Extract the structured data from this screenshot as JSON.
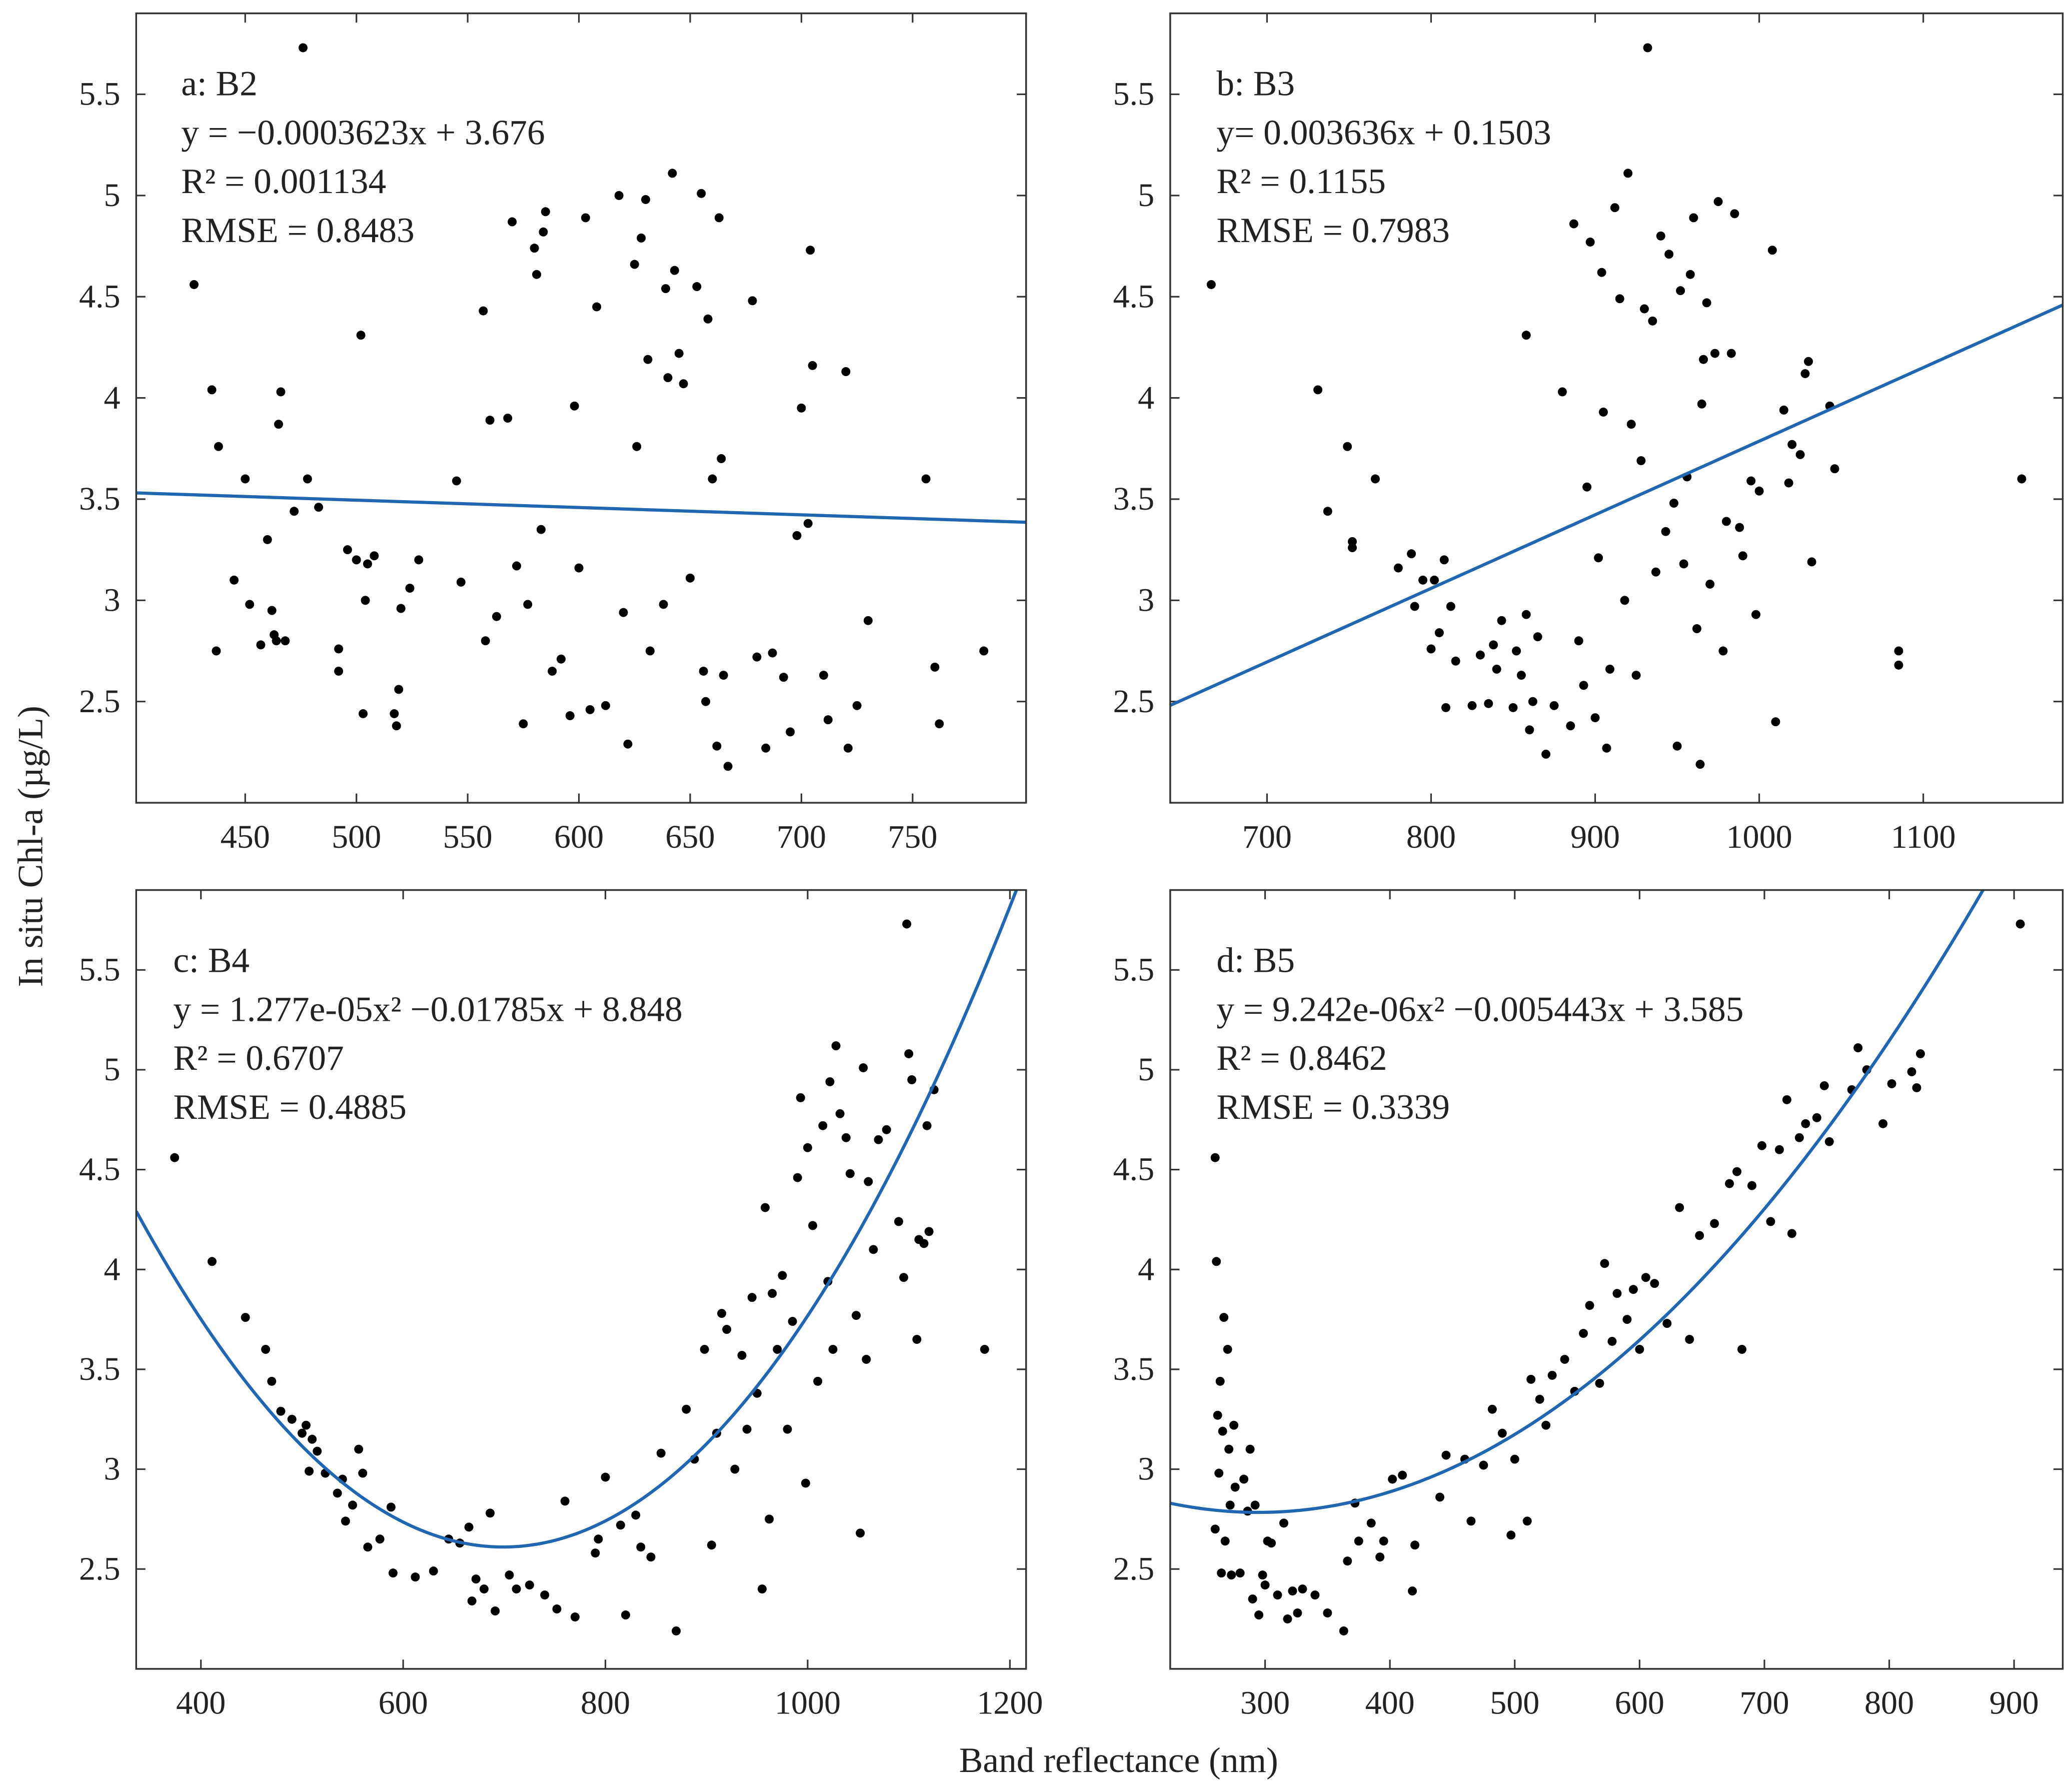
{
  "axis_labels": {
    "x": "Band reflectance (nm)",
    "y": "In situ Chl-a (µg/L)"
  },
  "chart_data": [
    {
      "type": "scatter",
      "annotations": [
        "a: B2",
        "y = −0.0003623x + 3.676",
        "R² = 0.001134",
        "RMSE = 0.8483"
      ],
      "fit": {
        "degree": 1,
        "coefficients": [
          -0.0003623,
          3.676
        ]
      },
      "color": "#000000",
      "fit_color": "#2166b0",
      "xlim": [
        401,
        801
      ],
      "ylim": [
        2.0,
        5.9
      ],
      "xticks": [
        450,
        500,
        550,
        600,
        650,
        700,
        750
      ],
      "yticks": [
        2.5,
        3,
        3.5,
        4,
        4.5,
        5,
        5.5
      ],
      "x": [
        427,
        435,
        437,
        438,
        445,
        450,
        452,
        457,
        460,
        462,
        463,
        464,
        465,
        466,
        468,
        472,
        476,
        478,
        483,
        492,
        492,
        496,
        500,
        502,
        503,
        504,
        505,
        508,
        517,
        518,
        519,
        520,
        524,
        528,
        545,
        547,
        557,
        558,
        560,
        563,
        568,
        570,
        572,
        575,
        577,
        580,
        581,
        583,
        584,
        585,
        588,
        592,
        596,
        598,
        600,
        603,
        605,
        608,
        612,
        618,
        620,
        622,
        625,
        626,
        628,
        630,
        631,
        632,
        638,
        639,
        640,
        642,
        643,
        645,
        647,
        650,
        653,
        655,
        656,
        657,
        658,
        660,
        662,
        663,
        664,
        665,
        667,
        678,
        680,
        684,
        687,
        692,
        695,
        698,
        700,
        703,
        704,
        705,
        710,
        712,
        720,
        721,
        725,
        730,
        756,
        760,
        762,
        782
      ],
      "values": [
        4.56,
        4.04,
        2.75,
        3.76,
        3.1,
        3.6,
        2.98,
        2.78,
        3.3,
        2.95,
        2.83,
        2.8,
        3.87,
        4.03,
        2.8,
        3.44,
        5.73,
        3.6,
        3.46,
        2.76,
        2.65,
        3.25,
        3.2,
        4.31,
        2.44,
        3.0,
        3.18,
        3.22,
        2.44,
        2.38,
        2.56,
        2.96,
        3.06,
        3.2,
        3.59,
        3.09,
        4.43,
        2.8,
        3.89,
        2.92,
        3.9,
        4.87,
        3.17,
        2.39,
        2.98,
        4.74,
        4.61,
        3.35,
        4.82,
        4.92,
        2.65,
        2.71,
        2.43,
        3.96,
        3.16,
        4.89,
        2.46,
        4.45,
        2.48,
        5.0,
        2.94,
        2.29,
        4.66,
        3.76,
        4.79,
        4.98,
        4.19,
        2.75,
        2.98,
        4.54,
        4.1,
        5.11,
        4.63,
        4.22,
        4.07,
        3.11,
        4.55,
        5.01,
        2.65,
        2.5,
        4.39,
        3.6,
        2.28,
        4.89,
        3.7,
        2.63,
        2.18,
        4.48,
        2.72,
        2.27,
        2.74,
        2.62,
        2.35,
        3.32,
        3.95,
        3.38,
        4.73,
        4.16,
        2.63,
        2.41,
        4.13,
        2.27,
        2.48,
        2.9,
        3.6,
        2.67,
        2.39,
        2.75
      ]
    },
    {
      "type": "scatter",
      "annotations": [
        "b: B3",
        "y= 0.003636x + 0.1503",
        "R² = 0.1155",
        "RMSE = 0.7983"
      ],
      "fit": {
        "degree": 1,
        "coefficients": [
          0.003636,
          0.1503
        ]
      },
      "color": "#000000",
      "fit_color": "#2166b0",
      "xlim": [
        641,
        1185
      ],
      "ylim": [
        2.0,
        5.9
      ],
      "xticks": [
        700,
        800,
        900,
        1000,
        1100
      ],
      "yticks": [
        2.5,
        3,
        3.5,
        4,
        4.5,
        5,
        5.5
      ],
      "x": [
        666,
        731,
        737,
        749,
        752,
        752,
        766,
        780,
        788,
        790,
        795,
        800,
        802,
        805,
        808,
        809,
        812,
        815,
        825,
        830,
        835,
        838,
        840,
        843,
        850,
        852,
        855,
        858,
        858,
        860,
        862,
        865,
        870,
        875,
        880,
        885,
        887,
        890,
        893,
        895,
        897,
        900,
        902,
        904,
        905,
        907,
        909,
        912,
        915,
        918,
        920,
        922,
        925,
        928,
        930,
        932,
        935,
        937,
        940,
        943,
        945,
        948,
        950,
        952,
        954,
        956,
        958,
        960,
        962,
        964,
        965,
        966,
        968,
        970,
        973,
        975,
        978,
        980,
        983,
        985,
        988,
        990,
        995,
        998,
        1000,
        1008,
        1010,
        1015,
        1018,
        1020,
        1025,
        1028,
        1030,
        1032,
        1043,
        1046,
        1085,
        1085,
        1160
      ],
      "values": [
        4.56,
        4.04,
        3.44,
        3.76,
        3.26,
        3.29,
        3.6,
        3.16,
        3.23,
        2.97,
        3.1,
        2.76,
        3.1,
        2.84,
        3.2,
        2.47,
        2.97,
        2.7,
        2.48,
        2.73,
        2.49,
        2.78,
        2.66,
        2.9,
        2.47,
        2.75,
        2.63,
        2.93,
        4.31,
        2.36,
        2.5,
        2.82,
        2.24,
        2.48,
        4.03,
        2.38,
        4.86,
        2.8,
        2.58,
        3.56,
        4.77,
        2.42,
        3.21,
        4.62,
        3.93,
        2.27,
        2.66,
        4.94,
        4.49,
        3.0,
        5.11,
        3.87,
        2.63,
        3.69,
        4.44,
        5.73,
        4.38,
        3.14,
        4.8,
        3.34,
        4.71,
        3.48,
        2.28,
        4.53,
        3.18,
        3.61,
        4.61,
        4.89,
        2.86,
        2.19,
        3.97,
        4.19,
        4.47,
        3.08,
        4.22,
        4.97,
        2.75,
        3.39,
        4.22,
        4.91,
        3.36,
        3.22,
        3.59,
        2.93,
        3.54,
        4.73,
        2.4,
        3.94,
        3.58,
        3.77,
        3.72,
        4.12,
        4.18,
        3.19,
        3.96,
        3.65,
        2.75,
        2.68,
        3.6
      ]
    },
    {
      "type": "scatter",
      "annotations": [
        "c: B4",
        "y = 1.277e-05x² −0.01785x + 8.848",
        "R² = 0.6707",
        "RMSE = 0.4885"
      ],
      "fit": {
        "degree": 2,
        "coefficients": [
          1.277e-05,
          -0.01785,
          8.848
        ]
      },
      "color": "#000000",
      "fit_color": "#2166b0",
      "xlim": [
        336,
        1216
      ],
      "ylim": [
        2.0,
        5.9
      ],
      "xticks": [
        400,
        600,
        800,
        1000,
        1200
      ],
      "yticks": [
        2.5,
        3,
        3.5,
        4,
        4.5,
        5,
        5.5
      ],
      "x": [
        374,
        411,
        444,
        464,
        470,
        479,
        490,
        500,
        504,
        507,
        510,
        515,
        523,
        535,
        540,
        543,
        550,
        556,
        560,
        565,
        577,
        588,
        590,
        612,
        630,
        645,
        656,
        665,
        668,
        672,
        680,
        686,
        691,
        705,
        712,
        725,
        740,
        752,
        760,
        770,
        790,
        793,
        800,
        815,
        820,
        830,
        835,
        845,
        855,
        870,
        880,
        888,
        898,
        905,
        910,
        915,
        920,
        928,
        935,
        940,
        945,
        950,
        955,
        958,
        962,
        965,
        970,
        975,
        980,
        985,
        990,
        993,
        998,
        1000,
        1005,
        1010,
        1015,
        1020,
        1022,
        1025,
        1028,
        1032,
        1038,
        1042,
        1048,
        1052,
        1055,
        1058,
        1060,
        1065,
        1070,
        1078,
        1090,
        1095,
        1098,
        1100,
        1103,
        1108,
        1110,
        1115,
        1118,
        1120,
        1125,
        1175
      ],
      "values": [
        4.56,
        4.04,
        3.76,
        3.6,
        3.44,
        3.29,
        3.25,
        3.18,
        3.22,
        2.99,
        3.15,
        3.09,
        2.98,
        2.88,
        2.95,
        2.74,
        2.82,
        3.1,
        2.98,
        2.61,
        2.65,
        2.81,
        2.48,
        2.46,
        2.49,
        2.65,
        2.63,
        2.71,
        2.34,
        2.45,
        2.4,
        2.78,
        2.29,
        2.47,
        2.4,
        2.42,
        2.37,
        2.3,
        2.84,
        2.26,
        2.58,
        2.65,
        2.96,
        2.72,
        2.27,
        2.77,
        2.61,
        2.56,
        3.08,
        2.19,
        3.3,
        3.05,
        3.6,
        2.62,
        3.18,
        3.78,
        3.7,
        3.0,
        3.57,
        3.2,
        3.86,
        3.38,
        2.4,
        4.31,
        2.75,
        3.88,
        3.6,
        3.97,
        3.2,
        3.74,
        4.46,
        4.86,
        2.93,
        4.61,
        4.22,
        3.44,
        4.72,
        3.94,
        4.94,
        3.6,
        5.12,
        4.78,
        4.66,
        4.48,
        3.77,
        2.68,
        5.01,
        3.55,
        4.44,
        4.1,
        4.65,
        4.7,
        4.24,
        3.96,
        5.73,
        5.08,
        4.95,
        3.65,
        4.15,
        4.13,
        4.72,
        4.19,
        4.9,
        3.6
      ]
    },
    {
      "type": "scatter",
      "annotations": [
        "d: B5",
        "y = 9.242e-06x² −0.005443x + 3.585",
        "R² = 0.8462",
        "RMSE = 0.3339"
      ],
      "fit": {
        "degree": 2,
        "coefficients": [
          9.242e-06,
          -0.005443,
          3.585
        ]
      },
      "color": "#000000",
      "fit_color": "#2166b0",
      "xlim": [
        224,
        939
      ],
      "ylim": [
        2.0,
        5.9
      ],
      "xticks": [
        300,
        400,
        500,
        600,
        700,
        800,
        900
      ],
      "yticks": [
        2.5,
        3,
        3.5,
        4,
        4.5,
        5,
        5.5
      ],
      "x": [
        260,
        260,
        261,
        262,
        263,
        264,
        265,
        266,
        267,
        268,
        270,
        271,
        272,
        273,
        275,
        276,
        280,
        283,
        286,
        288,
        290,
        292,
        295,
        298,
        300,
        302,
        305,
        310,
        315,
        318,
        322,
        326,
        330,
        340,
        350,
        363,
        366,
        372,
        375,
        385,
        392,
        395,
        402,
        410,
        418,
        420,
        440,
        445,
        460,
        465,
        475,
        482,
        490,
        497,
        500,
        510,
        513,
        520,
        525,
        530,
        540,
        548,
        555,
        560,
        568,
        572,
        578,
        582,
        590,
        595,
        600,
        605,
        612,
        622,
        632,
        640,
        648,
        660,
        672,
        678,
        682,
        690,
        698,
        705,
        712,
        718,
        722,
        728,
        733,
        742,
        748,
        752,
        770,
        775,
        782,
        795,
        802,
        818,
        822,
        825,
        905
      ],
      "values": [
        4.56,
        2.7,
        4.04,
        3.27,
        2.98,
        3.44,
        2.48,
        3.19,
        3.76,
        2.64,
        3.6,
        3.1,
        2.82,
        2.47,
        3.22,
        2.91,
        2.48,
        2.95,
        2.79,
        3.1,
        2.35,
        2.82,
        2.27,
        2.47,
        2.42,
        2.64,
        2.63,
        2.37,
        2.73,
        2.25,
        2.39,
        2.28,
        2.4,
        2.37,
        2.28,
        2.19,
        2.54,
        2.83,
        2.64,
        2.73,
        2.56,
        2.64,
        2.95,
        2.97,
        2.39,
        2.62,
        2.86,
        3.07,
        3.05,
        2.74,
        3.02,
        3.3,
        3.18,
        2.67,
        3.05,
        2.74,
        3.45,
        3.35,
        3.22,
        3.47,
        3.55,
        3.39,
        3.68,
        3.82,
        3.43,
        4.03,
        3.64,
        3.88,
        3.75,
        3.9,
        3.6,
        3.96,
        3.93,
        3.73,
        4.31,
        3.65,
        4.17,
        4.23,
        4.43,
        4.49,
        3.6,
        4.42,
        4.62,
        4.24,
        4.6,
        4.85,
        4.18,
        4.66,
        4.73,
        4.76,
        4.92,
        4.64,
        4.9,
        5.11,
        5.0,
        4.73,
        4.93,
        4.99,
        4.91,
        5.08,
        5.73
      ]
    }
  ]
}
